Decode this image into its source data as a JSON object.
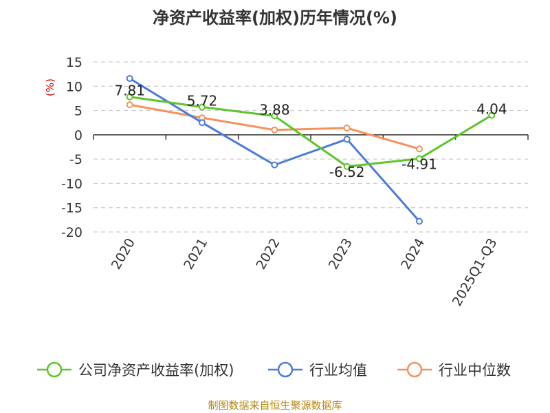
{
  "chart_data": {
    "type": "line",
    "title": "净资产收益率(加权)历年情况(%)",
    "ylabel": "(%)",
    "xlabel": "",
    "ylim": [
      -20,
      15
    ],
    "yticks": [
      15,
      10,
      5,
      0,
      -5,
      -10,
      -15,
      -20
    ],
    "grid": true,
    "legend_position": "bottom",
    "categories": [
      "2020",
      "2021",
      "2022",
      "2023",
      "2024",
      "2025Q1-Q3"
    ],
    "series": [
      {
        "name": "公司净资产收益率(加权)",
        "color": "#5cc52a",
        "values": [
          7.81,
          5.72,
          3.88,
          -6.52,
          -4.91,
          4.04
        ],
        "labels": [
          "7.81",
          "5.72",
          "3.88",
          "-6.52",
          "-4.91",
          "4.04"
        ]
      },
      {
        "name": "行业均值",
        "color": "#4b7bd9",
        "values": [
          11.6,
          2.5,
          -6.2,
          -0.9,
          -17.8,
          null
        ]
      },
      {
        "name": "行业中位数",
        "color": "#f5915a",
        "values": [
          6.2,
          3.5,
          1.0,
          1.4,
          -2.9,
          null
        ]
      }
    ]
  },
  "footer": {
    "source": "制图数据来自恒生聚源数据库"
  }
}
